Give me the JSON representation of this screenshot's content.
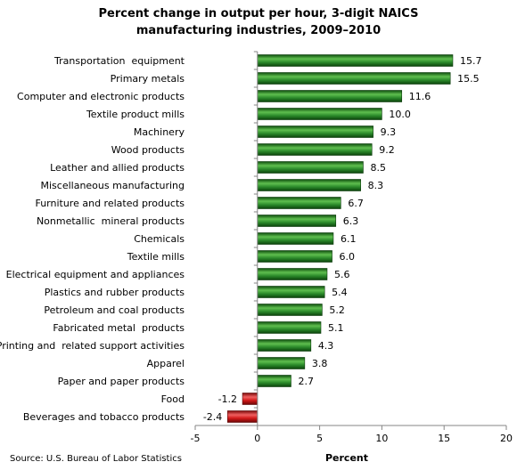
{
  "title_line1": "Percent change in output per hour, 3-digit NAICS",
  "title_line2": "manufacturing industries, 2009–2010",
  "source": "Source: U.S. Bureau of Labor Statistics",
  "colors": {
    "positive": "#1f7a1f",
    "positive_highlight": "#5fbf4f",
    "negative": "#c81414",
    "negative_highlight": "#f06060"
  },
  "chart_data": {
    "type": "bar",
    "orientation": "horizontal",
    "title": "Percent change in output per hour, 3-digit NAICS manufacturing industries, 2009–2010",
    "xlabel": "Percent",
    "ylabel": "",
    "xlim": [
      -5,
      20
    ],
    "xticks": [
      -5,
      0,
      5,
      10,
      15,
      20
    ],
    "grid": false,
    "categories": [
      "Transportation  equipment",
      "Primary metals",
      "Computer and electronic products",
      "Textile product mills",
      "Machinery",
      "Wood products",
      "Leather and allied products",
      "Miscellaneous manufacturing",
      "Furniture and related products",
      "Nonmetallic  mineral products",
      "Chemicals",
      "Textile mills",
      "Electrical equipment and appliances",
      "Plastics and rubber products",
      "Petroleum and coal products",
      "Fabricated metal  products",
      "Printing and  related support activities",
      "Apparel",
      "Paper and paper products",
      "Food",
      "Beverages and tobacco products"
    ],
    "values": [
      15.7,
      15.5,
      11.6,
      10.0,
      9.3,
      9.2,
      8.5,
      8.3,
      6.7,
      6.3,
      6.1,
      6.0,
      5.6,
      5.4,
      5.2,
      5.1,
      4.3,
      3.8,
      2.7,
      -1.2,
      -2.4
    ],
    "value_labels": [
      "15.7",
      "15.5",
      "11.6",
      "10.0",
      "9.3",
      "9.2",
      "8.5",
      "8.3",
      "6.7",
      "6.3",
      "6.1",
      "6.0",
      "5.6",
      "5.4",
      "5.2",
      "5.1",
      "4.3",
      "3.8",
      "2.7",
      "-1.2",
      "-2.4"
    ]
  }
}
